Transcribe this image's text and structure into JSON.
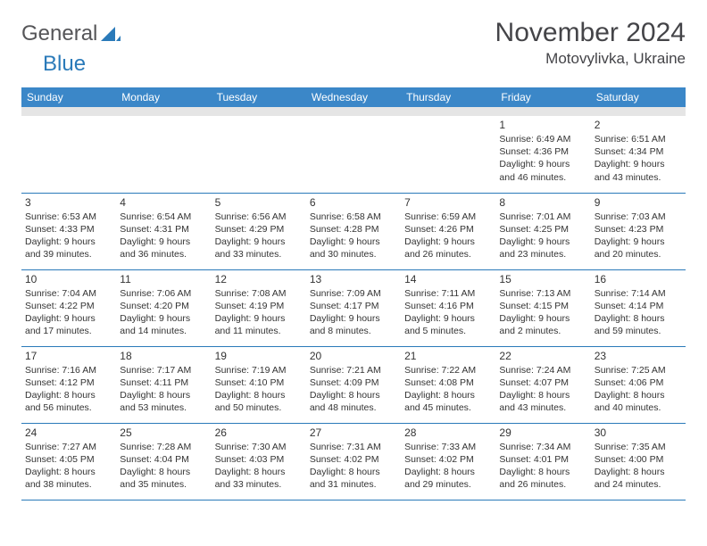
{
  "brand": {
    "part1": "General",
    "part2": "Blue"
  },
  "title": "November 2024",
  "location": "Motovylivka, Ukraine",
  "colors": {
    "header_bg": "#3b87c8",
    "header_text": "#ffffff",
    "border": "#2a7ab9",
    "spacer": "#e5e5e5",
    "text": "#333333",
    "title_text": "#444448"
  },
  "dayNames": [
    "Sunday",
    "Monday",
    "Tuesday",
    "Wednesday",
    "Thursday",
    "Friday",
    "Saturday"
  ],
  "weeks": [
    [
      null,
      null,
      null,
      null,
      null,
      {
        "n": "1",
        "sr": "6:49 AM",
        "ss": "4:36 PM",
        "dl": "9 hours and 46 minutes."
      },
      {
        "n": "2",
        "sr": "6:51 AM",
        "ss": "4:34 PM",
        "dl": "9 hours and 43 minutes."
      }
    ],
    [
      {
        "n": "3",
        "sr": "6:53 AM",
        "ss": "4:33 PM",
        "dl": "9 hours and 39 minutes."
      },
      {
        "n": "4",
        "sr": "6:54 AM",
        "ss": "4:31 PM",
        "dl": "9 hours and 36 minutes."
      },
      {
        "n": "5",
        "sr": "6:56 AM",
        "ss": "4:29 PM",
        "dl": "9 hours and 33 minutes."
      },
      {
        "n": "6",
        "sr": "6:58 AM",
        "ss": "4:28 PM",
        "dl": "9 hours and 30 minutes."
      },
      {
        "n": "7",
        "sr": "6:59 AM",
        "ss": "4:26 PM",
        "dl": "9 hours and 26 minutes."
      },
      {
        "n": "8",
        "sr": "7:01 AM",
        "ss": "4:25 PM",
        "dl": "9 hours and 23 minutes."
      },
      {
        "n": "9",
        "sr": "7:03 AM",
        "ss": "4:23 PM",
        "dl": "9 hours and 20 minutes."
      }
    ],
    [
      {
        "n": "10",
        "sr": "7:04 AM",
        "ss": "4:22 PM",
        "dl": "9 hours and 17 minutes."
      },
      {
        "n": "11",
        "sr": "7:06 AM",
        "ss": "4:20 PM",
        "dl": "9 hours and 14 minutes."
      },
      {
        "n": "12",
        "sr": "7:08 AM",
        "ss": "4:19 PM",
        "dl": "9 hours and 11 minutes."
      },
      {
        "n": "13",
        "sr": "7:09 AM",
        "ss": "4:17 PM",
        "dl": "9 hours and 8 minutes."
      },
      {
        "n": "14",
        "sr": "7:11 AM",
        "ss": "4:16 PM",
        "dl": "9 hours and 5 minutes."
      },
      {
        "n": "15",
        "sr": "7:13 AM",
        "ss": "4:15 PM",
        "dl": "9 hours and 2 minutes."
      },
      {
        "n": "16",
        "sr": "7:14 AM",
        "ss": "4:14 PM",
        "dl": "8 hours and 59 minutes."
      }
    ],
    [
      {
        "n": "17",
        "sr": "7:16 AM",
        "ss": "4:12 PM",
        "dl": "8 hours and 56 minutes."
      },
      {
        "n": "18",
        "sr": "7:17 AM",
        "ss": "4:11 PM",
        "dl": "8 hours and 53 minutes."
      },
      {
        "n": "19",
        "sr": "7:19 AM",
        "ss": "4:10 PM",
        "dl": "8 hours and 50 minutes."
      },
      {
        "n": "20",
        "sr": "7:21 AM",
        "ss": "4:09 PM",
        "dl": "8 hours and 48 minutes."
      },
      {
        "n": "21",
        "sr": "7:22 AM",
        "ss": "4:08 PM",
        "dl": "8 hours and 45 minutes."
      },
      {
        "n": "22",
        "sr": "7:24 AM",
        "ss": "4:07 PM",
        "dl": "8 hours and 43 minutes."
      },
      {
        "n": "23",
        "sr": "7:25 AM",
        "ss": "4:06 PM",
        "dl": "8 hours and 40 minutes."
      }
    ],
    [
      {
        "n": "24",
        "sr": "7:27 AM",
        "ss": "4:05 PM",
        "dl": "8 hours and 38 minutes."
      },
      {
        "n": "25",
        "sr": "7:28 AM",
        "ss": "4:04 PM",
        "dl": "8 hours and 35 minutes."
      },
      {
        "n": "26",
        "sr": "7:30 AM",
        "ss": "4:03 PM",
        "dl": "8 hours and 33 minutes."
      },
      {
        "n": "27",
        "sr": "7:31 AM",
        "ss": "4:02 PM",
        "dl": "8 hours and 31 minutes."
      },
      {
        "n": "28",
        "sr": "7:33 AM",
        "ss": "4:02 PM",
        "dl": "8 hours and 29 minutes."
      },
      {
        "n": "29",
        "sr": "7:34 AM",
        "ss": "4:01 PM",
        "dl": "8 hours and 26 minutes."
      },
      {
        "n": "30",
        "sr": "7:35 AM",
        "ss": "4:00 PM",
        "dl": "8 hours and 24 minutes."
      }
    ]
  ]
}
